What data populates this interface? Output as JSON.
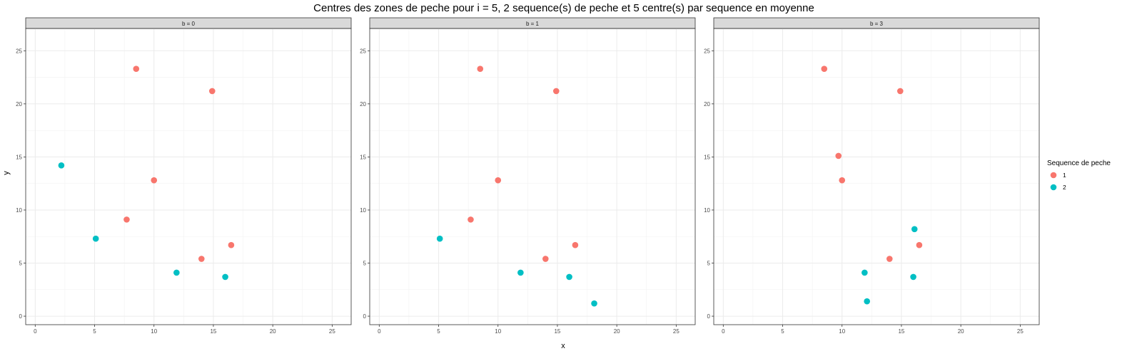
{
  "chart_data": {
    "type": "scatter",
    "title": "Centres des zones de peche pour i = 5, 2 sequence(s) de peche et 5 centre(s) par sequence en moyenne",
    "xlabel": "x",
    "ylabel": "y",
    "xlim": [
      -0.8,
      26.6
    ],
    "ylim": [
      -0.8,
      27.1
    ],
    "xticks": [
      0,
      5,
      10,
      15,
      20,
      25
    ],
    "yticks": [
      0,
      5,
      10,
      15,
      20,
      25
    ],
    "grid": true,
    "legend": {
      "title": "Sequence de peche",
      "position": "right",
      "entries": [
        {
          "label": "1",
          "color": "#F8766D"
        },
        {
          "label": "2",
          "color": "#00BFC4"
        }
      ]
    },
    "facets": [
      {
        "strip": "b = 0",
        "series": [
          {
            "name": "1",
            "color": "#F8766D",
            "points": [
              [
                8.5,
                23.3
              ],
              [
                14.9,
                21.2
              ],
              [
                10.0,
                12.8
              ],
              [
                7.7,
                9.1
              ],
              [
                14.0,
                5.4
              ],
              [
                16.5,
                6.7
              ]
            ]
          },
          {
            "name": "2",
            "color": "#00BFC4",
            "points": [
              [
                2.2,
                14.2
              ],
              [
                5.1,
                7.3
              ],
              [
                11.9,
                4.1
              ],
              [
                16.0,
                3.7
              ]
            ]
          }
        ]
      },
      {
        "strip": "b = 1",
        "series": [
          {
            "name": "1",
            "color": "#F8766D",
            "points": [
              [
                8.5,
                23.3
              ],
              [
                14.9,
                21.2
              ],
              [
                10.0,
                12.8
              ],
              [
                7.7,
                9.1
              ],
              [
                14.0,
                5.4
              ],
              [
                16.5,
                6.7
              ]
            ]
          },
          {
            "name": "2",
            "color": "#00BFC4",
            "points": [
              [
                5.1,
                7.3
              ],
              [
                11.9,
                4.1
              ],
              [
                16.0,
                3.7
              ],
              [
                18.1,
                1.2
              ]
            ]
          }
        ]
      },
      {
        "strip": "b = 3",
        "series": [
          {
            "name": "1",
            "color": "#F8766D",
            "points": [
              [
                8.5,
                23.3
              ],
              [
                14.9,
                21.2
              ],
              [
                9.7,
                15.1
              ],
              [
                10.0,
                12.8
              ],
              [
                14.0,
                5.4
              ],
              [
                16.5,
                6.7
              ]
            ]
          },
          {
            "name": "2",
            "color": "#00BFC4",
            "points": [
              [
                16.1,
                8.2
              ],
              [
                11.9,
                4.1
              ],
              [
                16.0,
                3.7
              ],
              [
                12.1,
                1.4
              ]
            ]
          }
        ]
      }
    ]
  }
}
